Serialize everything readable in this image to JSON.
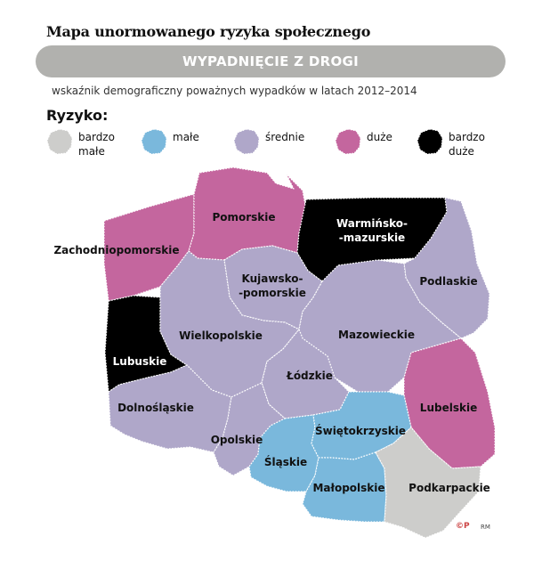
{
  "title": "Mapa unormowanego ryzyka społecznego",
  "banner": "WYPADNIĘCIE Z DROGI",
  "subtitle": "wskaźnik demograficzny poważnych wypadków w latach 2012–2014",
  "legend": {
    "title": "Ryzyko:",
    "items": [
      {
        "label": "bardzo małe",
        "color": "#cdcdcb"
      },
      {
        "label": "małe",
        "color": "#7ab8dc"
      },
      {
        "label": "średnie",
        "color": "#afa7c9"
      },
      {
        "label": "duże",
        "color": "#c4669e"
      },
      {
        "label": "bardzo duże",
        "color": "#000000"
      }
    ]
  },
  "regions": [
    {
      "name": "Zachodniopomorskie",
      "risk": "duże"
    },
    {
      "name": "Pomorskie",
      "risk": "duże"
    },
    {
      "name": "Warmińsko-mazurskie",
      "risk": "bardzo duże"
    },
    {
      "name": "Podlaskie",
      "risk": "średnie"
    },
    {
      "name": "Kujawsko-pomorskie",
      "risk": "średnie"
    },
    {
      "name": "Lubuskie",
      "risk": "bardzo duże"
    },
    {
      "name": "Wielkopolskie",
      "risk": "średnie"
    },
    {
      "name": "Mazowieckie",
      "risk": "średnie"
    },
    {
      "name": "Łódzkie",
      "risk": "średnie"
    },
    {
      "name": "Lubelskie",
      "risk": "duże"
    },
    {
      "name": "Dolnośląskie",
      "risk": "średnie"
    },
    {
      "name": "Opolskie",
      "risk": "średnie"
    },
    {
      "name": "Śląskie",
      "risk": "małe"
    },
    {
      "name": "Świętokrzyskie",
      "risk": "małe"
    },
    {
      "name": "Małopolskie",
      "risk": "małe"
    },
    {
      "name": "Podkarpackie",
      "risk": "bardzo małe"
    }
  ],
  "labels": {
    "zachodniopomorskie": "Zachodniopomorskie",
    "pomorskie": "Pomorskie",
    "warminsko_1": "Warmińsko-",
    "warminsko_2": "-mazurskie",
    "podlaskie": "Podlaskie",
    "kujawsko_1": "Kujawsko-",
    "kujawsko_2": "-pomorskie",
    "lubuskie": "Lubuskie",
    "wielkopolskie": "Wielkopolskie",
    "mazowieckie": "Mazowieckie",
    "lodzkie": "Łódzkie",
    "lubelskie": "Lubelskie",
    "dolnoslaskie": "Dolnośląskie",
    "opolskie": "Opolskie",
    "slaskie": "Śląskie",
    "swietokrzyskie": "Świętokrzyskie",
    "malopolskie": "Małopolskie",
    "podkarpackie": "Podkarpackie"
  },
  "credit": {
    "logo": "©P",
    "author": "RM"
  }
}
